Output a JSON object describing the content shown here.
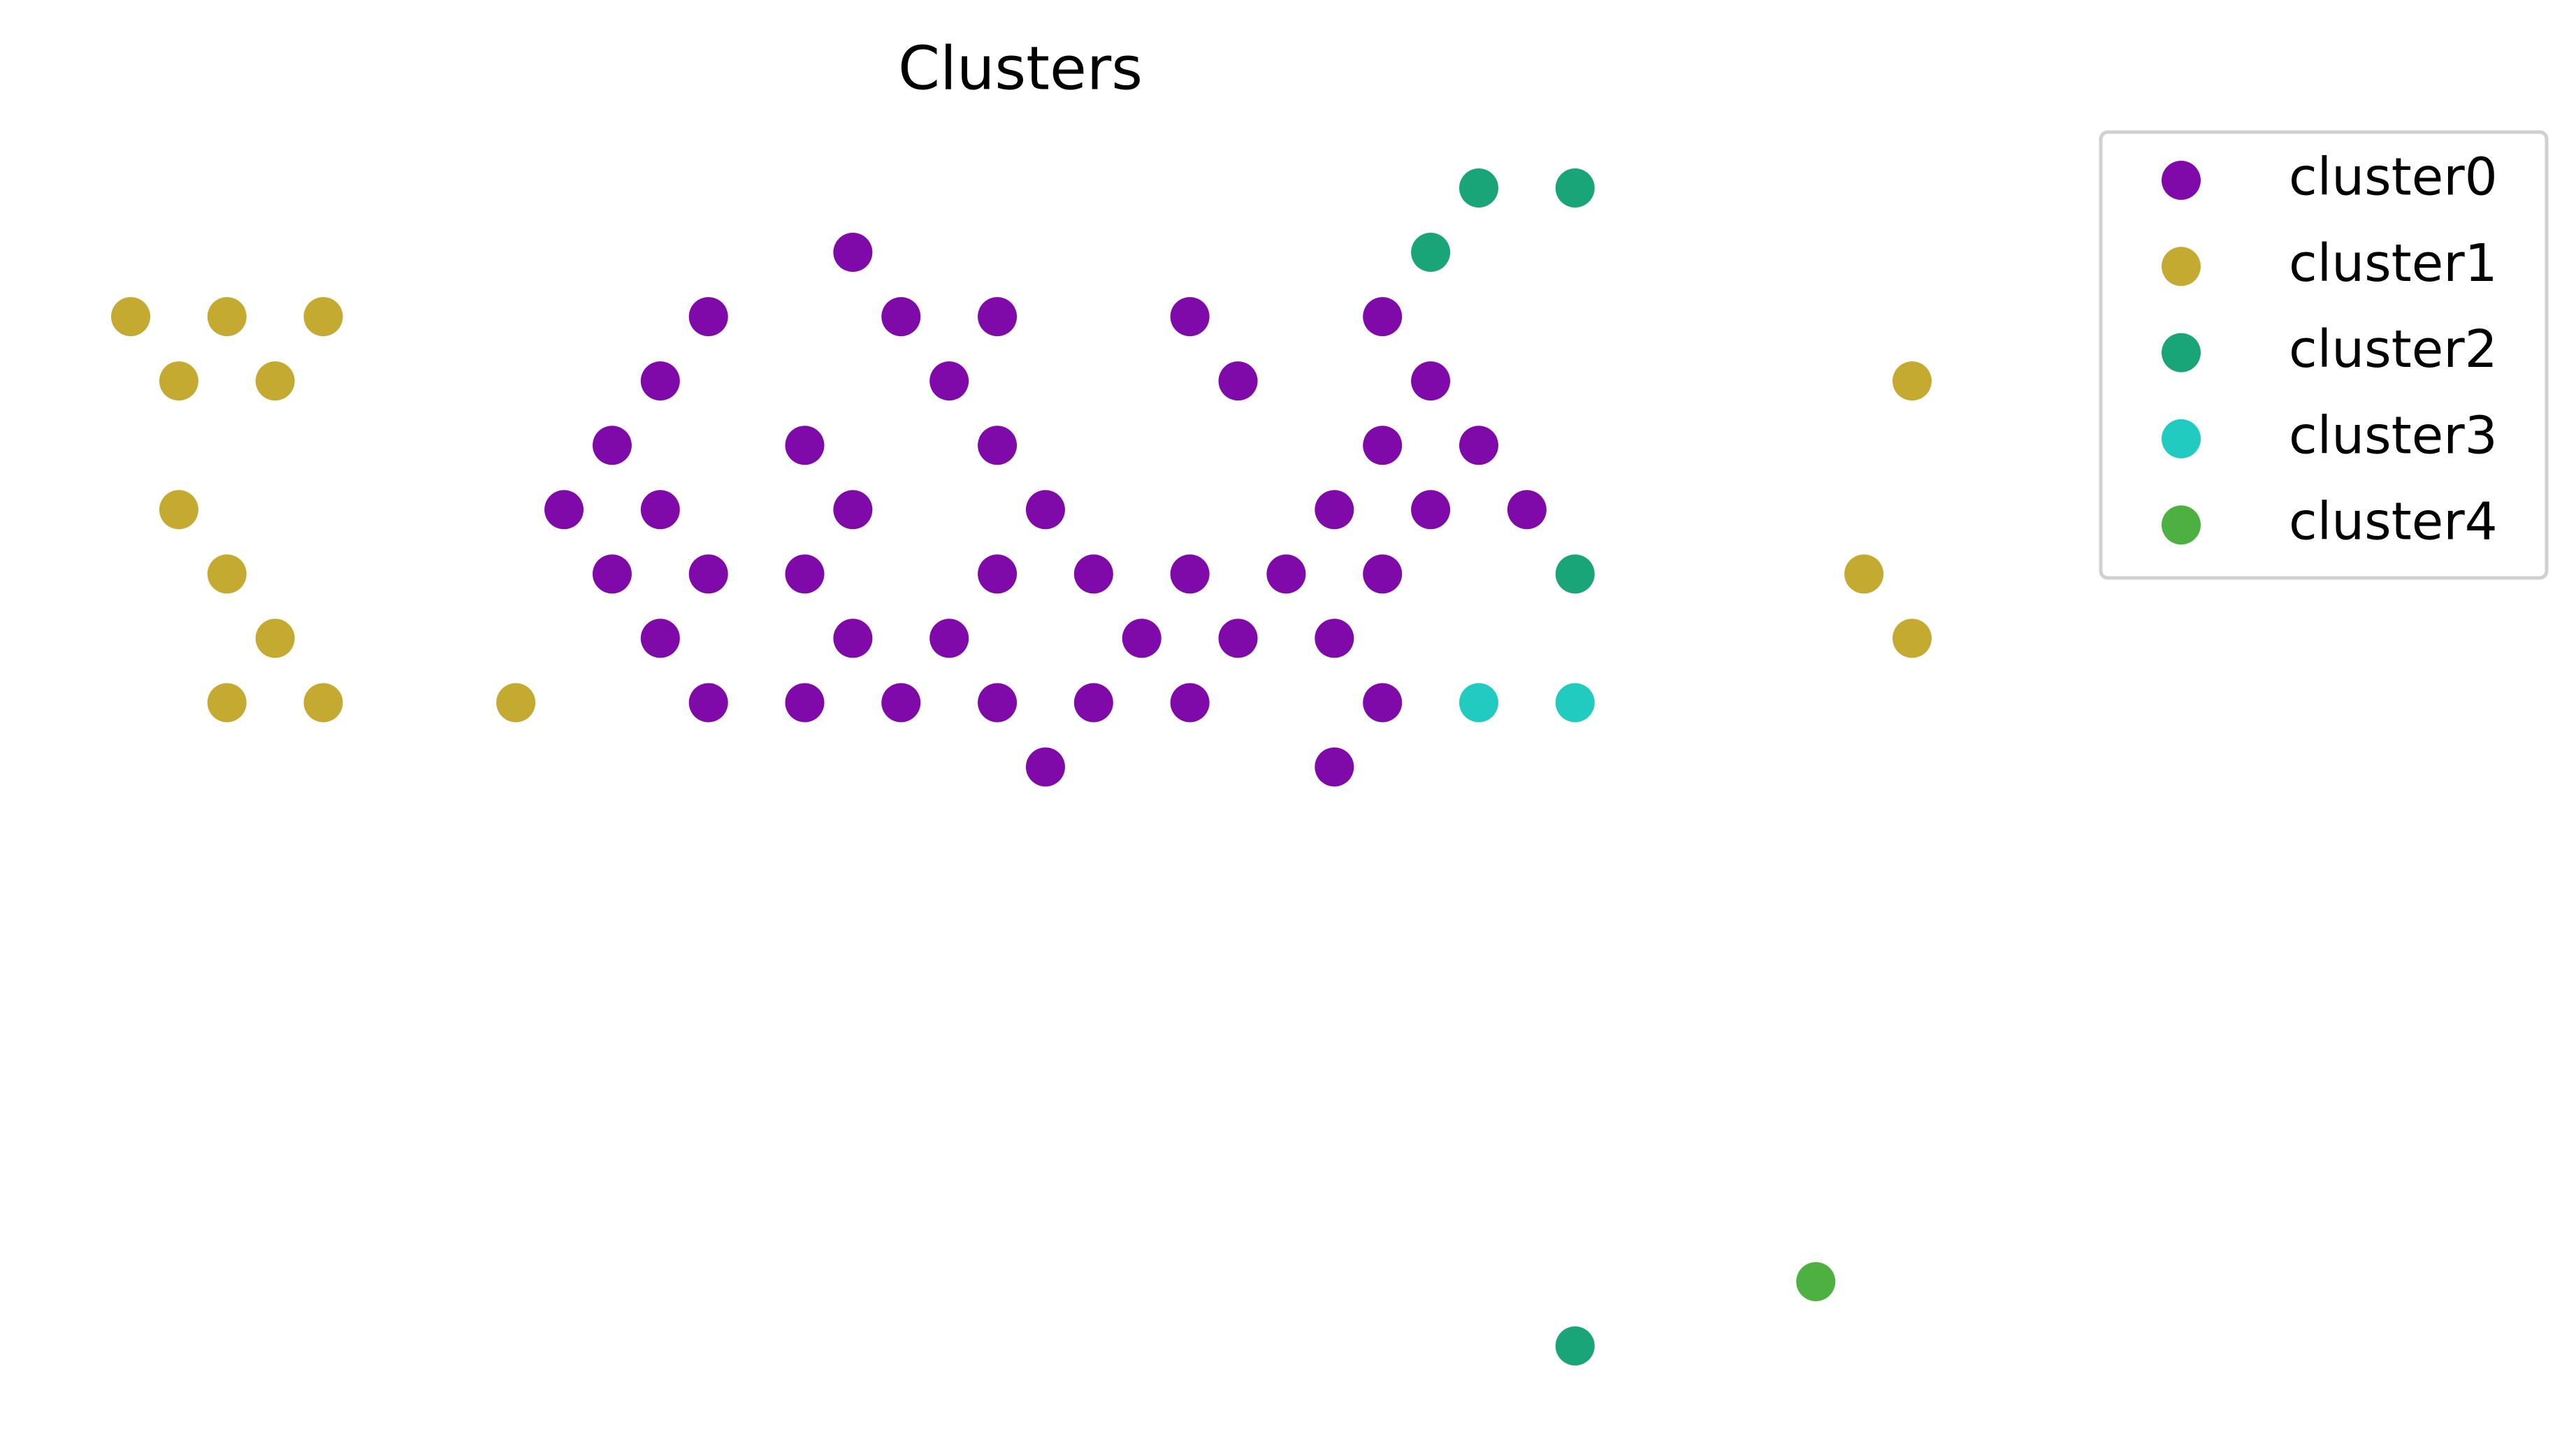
{
  "chart_data": {
    "type": "scatter",
    "title": "Clusters",
    "legend": "upper right",
    "series": [
      {
        "name": "cluster0",
        "color": "#7f0aa9",
        "x": [
          15,
          12,
          16,
          18,
          22,
          26,
          11,
          17,
          23,
          27,
          10,
          14,
          18,
          26,
          28,
          9,
          11,
          15,
          19,
          25,
          27,
          29,
          10,
          12,
          14,
          18,
          20,
          22,
          24,
          26,
          11,
          15,
          17,
          21,
          23,
          25,
          12,
          14,
          16,
          18,
          20,
          22,
          26,
          19,
          25
        ],
        "y": [
          17,
          16,
          16,
          16,
          16,
          16,
          15,
          15,
          15,
          15,
          14,
          14,
          14,
          14,
          14,
          13,
          13,
          13,
          13,
          13,
          13,
          13,
          12,
          12,
          12,
          12,
          12,
          12,
          12,
          12,
          11,
          11,
          11,
          11,
          11,
          11,
          10,
          10,
          10,
          10,
          10,
          10,
          10,
          9,
          9
        ]
      },
      {
        "name": "cluster1",
        "color": "#c4aa30",
        "x": [
          0,
          2,
          4,
          1,
          3,
          1,
          2,
          3,
          2,
          4,
          8,
          37,
          36,
          37
        ],
        "y": [
          16,
          16,
          16,
          15,
          15,
          13,
          12,
          11,
          10,
          10,
          10,
          15,
          12,
          11
        ]
      },
      {
        "name": "cluster2",
        "color": "#1aa578",
        "x": [
          28,
          30,
          27,
          30,
          30
        ],
        "y": [
          18,
          18,
          17,
          12,
          0
        ]
      },
      {
        "name": "cluster3",
        "color": "#21cbc0",
        "x": [
          28,
          30
        ],
        "y": [
          10,
          10
        ]
      },
      {
        "name": "cluster4",
        "color": "#4db142",
        "x": [
          35
        ],
        "y": [
          1
        ]
      }
    ]
  }
}
